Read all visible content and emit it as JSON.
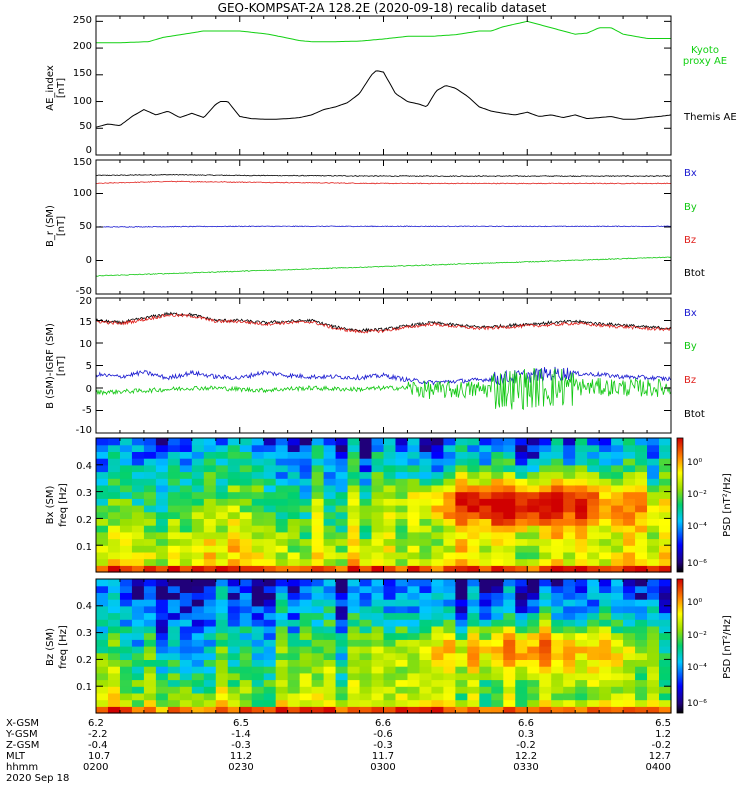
{
  "title": "GEO-KOMPSAT-2A 128.2E (2020-09-18) recalib dataset",
  "colors": {
    "black": "#000000",
    "red": "#e0201c",
    "blue": "#1a1ad0",
    "green": "#12c812",
    "kyoto": "#12d012"
  },
  "chart_data": [
    {
      "type": "line",
      "ylabel": "AE_index [nT]",
      "ylabel_lines": [
        "AE_index",
        "[nT]"
      ],
      "ylim": [
        0,
        260
      ],
      "yticks": [
        "0",
        "50",
        "100",
        "150",
        "200",
        "250"
      ],
      "legend": [
        {
          "lines": [
            "Kyoto",
            "proxy AE"
          ],
          "color": "#12d012"
        },
        {
          "lines": [
            "Themis AE"
          ],
          "color": "#000000"
        }
      ],
      "series": [
        {
          "name": "Kyoto proxy AE",
          "color": "#12d012",
          "x": [
            0,
            10,
            22,
            28,
            45,
            60,
            72,
            85,
            90,
            100,
            110,
            120,
            130,
            140,
            150,
            160,
            165,
            170,
            180,
            190,
            200,
            205,
            210,
            215,
            220,
            230,
            240
          ],
          "y": [
            210,
            210,
            212,
            220,
            232,
            232,
            226,
            214,
            212,
            212,
            213,
            217,
            222,
            222,
            225,
            232,
            232,
            240,
            250,
            238,
            226,
            228,
            238,
            238,
            226,
            218,
            218
          ]
        },
        {
          "name": "Themis AE",
          "color": "#000000",
          "x": [
            0,
            5,
            10,
            15,
            20,
            25,
            30,
            35,
            40,
            45,
            50,
            52,
            55,
            60,
            65,
            70,
            75,
            80,
            85,
            90,
            95,
            100,
            105,
            110,
            115,
            117,
            120,
            125,
            130,
            135,
            138,
            142,
            146,
            150,
            155,
            160,
            165,
            170,
            175,
            180,
            185,
            190,
            195,
            200,
            205,
            210,
            215,
            220,
            225,
            230,
            235,
            240
          ],
          "y": [
            52,
            58,
            55,
            72,
            85,
            75,
            82,
            70,
            78,
            70,
            95,
            100,
            100,
            72,
            68,
            67,
            67,
            68,
            70,
            75,
            85,
            90,
            98,
            115,
            150,
            158,
            155,
            115,
            100,
            95,
            90,
            120,
            130,
            125,
            110,
            90,
            82,
            78,
            75,
            80,
            72,
            75,
            70,
            75,
            68,
            70,
            72,
            67,
            67,
            70,
            72,
            75
          ]
        }
      ]
    },
    {
      "type": "line",
      "ylabel": "B_r (SM) [nT]",
      "ylabel_lines": [
        "B_r (SM)",
        "[nT]"
      ],
      "ylim": [
        -50,
        150
      ],
      "yticks": [
        "-50",
        "0",
        "50",
        "100",
        "150"
      ],
      "legend": [
        {
          "lines": [
            "Bx"
          ],
          "color": "#1a1ad0"
        },
        {
          "lines": [
            "By"
          ],
          "color": "#12c812"
        },
        {
          "lines": [
            "Bz"
          ],
          "color": "#e0201c"
        },
        {
          "lines": [
            "Btot"
          ],
          "color": "#000000"
        }
      ],
      "series": [
        {
          "name": "Btot",
          "color": "#000000",
          "x": [
            0,
            30,
            60,
            120,
            180,
            240
          ],
          "y": [
            127,
            128,
            127,
            126,
            126,
            126
          ]
        },
        {
          "name": "Bz",
          "color": "#e0201c",
          "x": [
            0,
            30,
            60,
            120,
            180,
            240
          ],
          "y": [
            115,
            118,
            117,
            115,
            115,
            115
          ]
        },
        {
          "name": "Bx",
          "color": "#1a1ad0",
          "x": [
            0,
            60,
            120,
            180,
            240
          ],
          "y": [
            50,
            51,
            51,
            51,
            51
          ]
        },
        {
          "name": "By",
          "color": "#12c812",
          "x": [
            0,
            60,
            120,
            180,
            240
          ],
          "y": [
            -23,
            -16,
            -9,
            -2,
            5
          ]
        }
      ]
    },
    {
      "type": "line",
      "ylabel": "B (SM)-IGRF (SM) [nT]",
      "ylabel_lines": [
        "B (SM)-IGRF (SM)",
        "[nT]"
      ],
      "ylim": [
        -10,
        20
      ],
      "yticks": [
        "-10",
        "-5",
        "0",
        "5",
        "10",
        "15",
        "20"
      ],
      "legend": [
        {
          "lines": [
            "Bx"
          ],
          "color": "#1a1ad0"
        },
        {
          "lines": [
            "By"
          ],
          "color": "#12c812"
        },
        {
          "lines": [
            "Bz"
          ],
          "color": "#e0201c"
        },
        {
          "lines": [
            "Btot"
          ],
          "color": "#000000"
        }
      ],
      "series": [
        {
          "name": "Btot",
          "color": "#000000",
          "x": [
            0,
            10,
            20,
            30,
            40,
            50,
            60,
            70,
            80,
            90,
            100,
            110,
            120,
            130,
            140,
            150,
            160,
            170,
            180,
            190,
            200,
            210,
            220,
            230,
            240
          ],
          "y": [
            15,
            14.5,
            15.5,
            16.5,
            16.3,
            15,
            15,
            14.5,
            14.8,
            15,
            13.5,
            12.8,
            13,
            13.8,
            14.5,
            14,
            13.5,
            13.8,
            14.2,
            14.5,
            14.8,
            14.3,
            14,
            13.5,
            13.3
          ]
        },
        {
          "name": "Bz",
          "color": "#e0201c",
          "x": [
            0,
            10,
            20,
            30,
            40,
            50,
            60,
            70,
            80,
            90,
            100,
            110,
            120,
            130,
            140,
            150,
            160,
            170,
            180,
            190,
            200,
            210,
            220,
            230,
            240
          ],
          "y": [
            14.8,
            14.3,
            15.2,
            16.2,
            16,
            14.8,
            14.8,
            14.2,
            14.5,
            14.7,
            13.2,
            12.5,
            12.7,
            13.5,
            14.2,
            13.7,
            13.2,
            13.5,
            13.8,
            14,
            14.4,
            13.9,
            13.6,
            13.2,
            13
          ]
        },
        {
          "name": "Bx",
          "color": "#1a1ad0",
          "x": [
            0,
            10,
            20,
            30,
            40,
            50,
            60,
            70,
            80,
            90,
            100,
            110,
            120,
            130,
            140,
            150,
            160,
            170,
            180,
            190,
            200,
            210,
            220,
            230,
            240
          ],
          "y": [
            3,
            2.5,
            3.5,
            2.2,
            3.4,
            2.5,
            2.2,
            3.5,
            2.8,
            2.5,
            2.5,
            2.3,
            2.8,
            1.8,
            1.2,
            1.5,
            1.8,
            2.2,
            2.7,
            3.2,
            3.2,
            3,
            2.5,
            2.3,
            2
          ]
        },
        {
          "name": "By",
          "color": "#12c812",
          "x": [
            0,
            10,
            20,
            30,
            40,
            50,
            60,
            70,
            80,
            90,
            100,
            110,
            120,
            130,
            140,
            150,
            160,
            170,
            180,
            190,
            200,
            210,
            220,
            230,
            240
          ],
          "y": [
            -1,
            -0.8,
            -0.6,
            -0.3,
            0,
            0,
            -0.3,
            -0.5,
            -0.2,
            0,
            -0.2,
            -0.3,
            0,
            0,
            -0.5,
            -0.4,
            -0.3,
            -0.2,
            0,
            0.2,
            0.3,
            0.2,
            0.1,
            0,
            0
          ]
        }
      ]
    },
    {
      "type": "heatmap",
      "ylabel": "Bx (SM) freq [Hz]",
      "ylabel_lines": [
        "Bx (SM)",
        "freq [Hz]"
      ],
      "ylim": [
        0,
        0.5
      ],
      "yticks": [
        "0.1",
        "0.2",
        "0.3",
        "0.4"
      ],
      "colorbar": {
        "label": "PSD [nT²/Hz]",
        "ticks": [
          "10⁰",
          "10⁻²",
          "10⁻⁴",
          "10⁻⁶"
        ]
      },
      "x_bins": 48,
      "f_bins": 20,
      "features": {
        "activity_center_time": 180,
        "activity_center_freq": 0.26,
        "peak_log_psd": 1
      }
    },
    {
      "type": "heatmap",
      "ylabel": "Bz (SM) freq [Hz]",
      "ylabel_lines": [
        "Bz (SM)",
        "freq [Hz]"
      ],
      "ylim": [
        0,
        0.5
      ],
      "yticks": [
        "0.1",
        "0.2",
        "0.3",
        "0.4"
      ],
      "colorbar": {
        "label": "PSD [nT²/Hz]",
        "ticks": [
          "10⁰",
          "10⁻²",
          "10⁻⁴",
          "10⁻⁶"
        ]
      },
      "x_bins": 48,
      "f_bins": 20,
      "features": {
        "activity_center_time": 180,
        "activity_center_freq": 0.24,
        "peak_log_psd": -0.5
      }
    }
  ],
  "ephemeris": {
    "row_labels": [
      "X-GSM",
      "Y-GSM",
      "Z-GSM",
      "MLT",
      "hhmm"
    ],
    "date": "2020 Sep 18",
    "columns": [
      {
        "X-GSM": "6.2",
        "Y-GSM": "-2.2",
        "Z-GSM": "-0.4",
        "MLT": "10.7",
        "hhmm": "0200"
      },
      {
        "X-GSM": "6.5",
        "Y-GSM": "-1.4",
        "Z-GSM": "-0.3",
        "MLT": "11.2",
        "hhmm": "0230"
      },
      {
        "X-GSM": "6.6",
        "Y-GSM": "-0.6",
        "Z-GSM": "-0.3",
        "MLT": "11.7",
        "hhmm": "0300"
      },
      {
        "X-GSM": "6.6",
        "Y-GSM": "0.3",
        "Z-GSM": "-0.2",
        "MLT": "12.2",
        "hhmm": "0330"
      },
      {
        "X-GSM": "6.5",
        "Y-GSM": "1.2",
        "Z-GSM": "-0.2",
        "MLT": "12.7",
        "hhmm": "0400"
      }
    ]
  }
}
